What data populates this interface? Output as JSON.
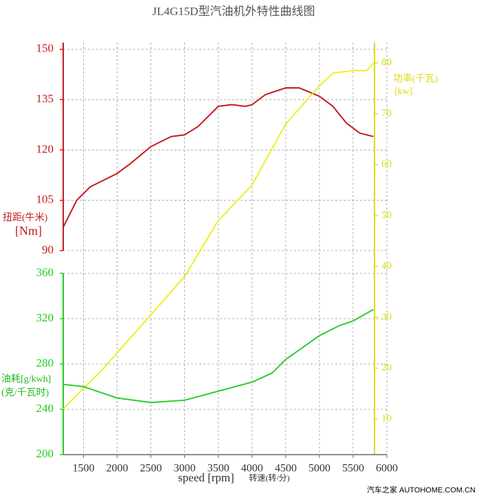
{
  "chart_data": {
    "type": "line",
    "title": "JL4G15D型汽油机外特性曲线图",
    "xlabel": "speed [rpm]",
    "xlabel_cn": "转速(转/分)",
    "ylabel": "扭距(牛米)",
    "ylabel_unit": "[Nm]",
    "y2label": "功率(千瓦)",
    "y2label_unit": "[kw]",
    "y3label": "油耗[g/kwh]",
    "y3label_unit": "(克/千瓦时)",
    "watermark": "汽车之家 AUTOHOME.COM.CN",
    "xlim": [
      1200,
      6000
    ],
    "xticks": [
      1500,
      2000,
      2500,
      3000,
      3500,
      4000,
      4500,
      5000,
      5500,
      6000
    ],
    "ylim": [
      90,
      152
    ],
    "yticks": [
      90,
      105,
      120,
      135,
      150
    ],
    "y2lim": [
      3,
      84
    ],
    "y2ticks": [
      10,
      20,
      30,
      40,
      50,
      60,
      70,
      80
    ],
    "y3lim": [
      200,
      360
    ],
    "y3ticks": [
      200,
      240,
      280,
      320,
      360
    ],
    "grid": true,
    "series": [
      {
        "color": "#c41a1f",
        "axis": "y",
        "x": [
          1200,
          1400,
          1600,
          1800,
          2000,
          2200,
          2500,
          2800,
          3000,
          3200,
          3500,
          3700,
          3900,
          4000,
          4200,
          4500,
          4700,
          5000,
          5200,
          5400,
          5600,
          5800
        ],
        "values": [
          97,
          105,
          109,
          111,
          113,
          116,
          121,
          124,
          124.5,
          127,
          133,
          133.5,
          133,
          133.5,
          136.5,
          138.5,
          138.5,
          136,
          133,
          128,
          125,
          124
        ]
      },
      {
        "color": "#eeee22",
        "axis": "y2",
        "x": [
          1200,
          1500,
          1800,
          2000,
          2500,
          3000,
          3500,
          4000,
          4500,
          5000,
          5200,
          5500,
          5700,
          5800
        ],
        "values": [
          12,
          16,
          20,
          23,
          30.5,
          38,
          49,
          56,
          68,
          75.5,
          78,
          78.5,
          78.5,
          80
        ]
      },
      {
        "color": "#2ecc2e",
        "axis": "y3",
        "x": [
          1200,
          1500,
          1800,
          2000,
          2500,
          3000,
          3500,
          4000,
          4300,
          4500,
          5000,
          5300,
          5500,
          5800
        ],
        "values": [
          262,
          260,
          254,
          250,
          246,
          248,
          256,
          264,
          272,
          284,
          305,
          314,
          318,
          328
        ]
      }
    ]
  }
}
